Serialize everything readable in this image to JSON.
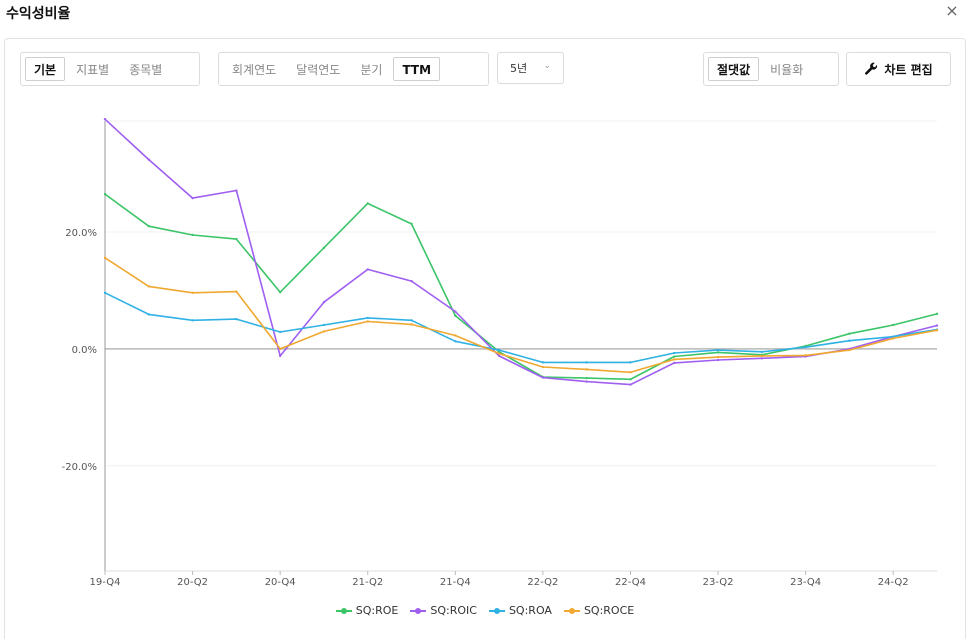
{
  "header": {
    "title": "수익성비율",
    "close_label": "×"
  },
  "toolbar": {
    "view_group": [
      {
        "label": "기본",
        "active": true
      },
      {
        "label": "지표별",
        "active": false
      },
      {
        "label": "종목별",
        "active": false
      }
    ],
    "period_group": [
      {
        "label": "회계연도",
        "active": false
      },
      {
        "label": "달력연도",
        "active": false
      },
      {
        "label": "분기",
        "active": false
      },
      {
        "label": "TTM",
        "active": true
      }
    ],
    "range_dropdown": {
      "value": "5년",
      "chevron": "⌄"
    },
    "scale_group": [
      {
        "label": "절댓값",
        "active": true
      },
      {
        "label": "비율화",
        "active": false
      }
    ],
    "edit_button": {
      "label": "차트 편집",
      "icon": "wrench-icon"
    }
  },
  "chart_data": {
    "type": "line",
    "x": [
      "19-Q4",
      "20-Q1",
      "20-Q2",
      "20-Q3",
      "20-Q4",
      "21-Q1",
      "21-Q2",
      "21-Q3",
      "21-Q4",
      "22-Q1",
      "22-Q2",
      "22-Q3",
      "22-Q4",
      "23-Q1",
      "23-Q2",
      "23-Q3",
      "23-Q4",
      "24-Q1",
      "24-Q2",
      "24-Q3"
    ],
    "x_tick_labels": [
      "19-Q4",
      "20-Q2",
      "20-Q4",
      "21-Q2",
      "21-Q4",
      "22-Q2",
      "22-Q4",
      "23-Q2",
      "23-Q4",
      "24-Q2"
    ],
    "y_ticks": [
      {
        "value": 20,
        "label": "20.0%"
      },
      {
        "value": 0,
        "label": "0.0%"
      },
      {
        "value": -20,
        "label": "-20.0%"
      }
    ],
    "ylim": [
      -38,
      39
    ],
    "grid": true,
    "legend_position": "bottom-center",
    "series": [
      {
        "name": "SQ:ROE",
        "color": "#3cc468",
        "values": [
          26.5,
          21.0,
          19.5,
          18.8,
          9.7,
          17.3,
          24.9,
          21.4,
          5.7,
          -0.5,
          -4.8,
          -5.0,
          -5.2,
          -1.3,
          -0.6,
          -1.0,
          0.5,
          2.6,
          4.1,
          6.0
        ]
      },
      {
        "name": "SQ:ROIC",
        "color": "#a05ff0",
        "values": [
          39.3,
          32.4,
          25.8,
          27.1,
          -1.2,
          8.0,
          13.6,
          11.6,
          6.4,
          -1.2,
          -4.9,
          -5.6,
          -6.1,
          -2.4,
          -1.9,
          -1.6,
          -1.3,
          0.0,
          2.1,
          4.0
        ]
      },
      {
        "name": "SQ:ROA",
        "color": "#2fb1e4",
        "values": [
          9.6,
          5.9,
          4.9,
          5.1,
          2.9,
          4.1,
          5.3,
          4.9,
          1.3,
          -0.2,
          -2.3,
          -2.3,
          -2.3,
          -0.7,
          -0.2,
          -0.5,
          0.3,
          1.4,
          2.1,
          3.3
        ]
      },
      {
        "name": "SQ:ROCE",
        "color": "#f0a830",
        "values": [
          15.6,
          10.7,
          9.6,
          9.8,
          0.0,
          3.0,
          4.7,
          4.2,
          2.3,
          -0.8,
          -3.1,
          -3.5,
          -4.0,
          -1.8,
          -1.4,
          -1.2,
          -1.1,
          -0.2,
          1.8,
          3.2
        ]
      }
    ]
  }
}
